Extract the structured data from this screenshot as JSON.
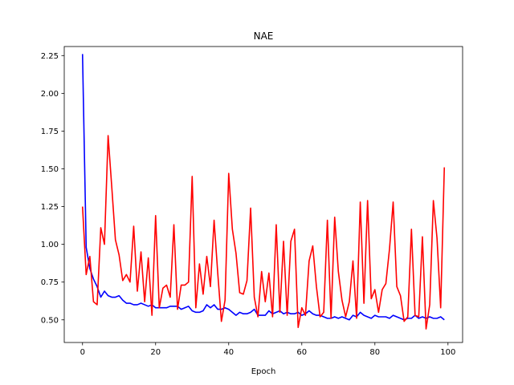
{
  "chart_data": {
    "type": "line",
    "title": "NAE",
    "xlabel": "Epoch",
    "ylabel": "",
    "xlim": [
      -5,
      104
    ],
    "ylim": [
      0.35,
      2.31
    ],
    "xticks": [
      0,
      20,
      40,
      60,
      80,
      100
    ],
    "yticks": [
      0.5,
      0.75,
      1.0,
      1.25,
      1.5,
      1.75,
      2.0,
      2.25
    ],
    "xtick_labels": [
      "0",
      "20",
      "40",
      "60",
      "80",
      "100"
    ],
    "ytick_labels": [
      "0.50",
      "0.75",
      "1.00",
      "1.25",
      "1.50",
      "1.75",
      "2.00",
      "2.25"
    ],
    "grid": false,
    "x": [
      0,
      1,
      2,
      3,
      4,
      5,
      6,
      7,
      8,
      9,
      10,
      11,
      12,
      13,
      14,
      15,
      16,
      17,
      18,
      19,
      20,
      21,
      22,
      23,
      24,
      25,
      26,
      27,
      28,
      29,
      30,
      31,
      32,
      33,
      34,
      35,
      36,
      37,
      38,
      39,
      40,
      41,
      42,
      43,
      44,
      45,
      46,
      47,
      48,
      49,
      50,
      51,
      52,
      53,
      54,
      55,
      56,
      57,
      58,
      59,
      60,
      61,
      62,
      63,
      64,
      65,
      66,
      67,
      68,
      69,
      70,
      71,
      72,
      73,
      74,
      75,
      76,
      77,
      78,
      79,
      80,
      81,
      82,
      83,
      84,
      85,
      86,
      87,
      88,
      89,
      90,
      91,
      92,
      93,
      94,
      95,
      96,
      97,
      98,
      99
    ],
    "series": [
      {
        "color": "#0000ff",
        "values": [
          2.26,
          0.98,
          0.84,
          0.77,
          0.72,
          0.65,
          0.69,
          0.66,
          0.65,
          0.65,
          0.66,
          0.63,
          0.61,
          0.61,
          0.6,
          0.6,
          0.61,
          0.6,
          0.59,
          0.6,
          0.58,
          0.58,
          0.58,
          0.58,
          0.59,
          0.59,
          0.59,
          0.57,
          0.58,
          0.59,
          0.56,
          0.55,
          0.55,
          0.56,
          0.6,
          0.58,
          0.6,
          0.57,
          0.57,
          0.58,
          0.57,
          0.55,
          0.53,
          0.55,
          0.54,
          0.54,
          0.55,
          0.57,
          0.53,
          0.53,
          0.53,
          0.56,
          0.54,
          0.55,
          0.56,
          0.54,
          0.55,
          0.54,
          0.54,
          0.55,
          0.53,
          0.54,
          0.56,
          0.54,
          0.53,
          0.53,
          0.52,
          0.51,
          0.51,
          0.52,
          0.51,
          0.52,
          0.51,
          0.5,
          0.53,
          0.52,
          0.55,
          0.53,
          0.52,
          0.51,
          0.53,
          0.52,
          0.52,
          0.52,
          0.51,
          0.53,
          0.52,
          0.51,
          0.5,
          0.51,
          0.51,
          0.53,
          0.51,
          0.52,
          0.51,
          0.52,
          0.51,
          0.51,
          0.52,
          0.5
        ]
      },
      {
        "color": "#ff0000",
        "values": [
          1.25,
          0.8,
          0.92,
          0.62,
          0.6,
          1.11,
          1.0,
          1.72,
          1.38,
          1.03,
          0.93,
          0.76,
          0.8,
          0.75,
          1.12,
          0.69,
          0.95,
          0.62,
          0.91,
          0.53,
          1.19,
          0.58,
          0.71,
          0.73,
          0.65,
          1.13,
          0.57,
          0.73,
          0.73,
          0.75,
          1.45,
          0.58,
          0.87,
          0.67,
          0.92,
          0.72,
          1.16,
          0.81,
          0.49,
          0.63,
          1.47,
          1.1,
          0.94,
          0.68,
          0.67,
          0.76,
          1.24,
          0.65,
          0.52,
          0.82,
          0.62,
          0.81,
          0.52,
          1.13,
          0.55,
          1.02,
          0.53,
          1.02,
          1.1,
          0.45,
          0.58,
          0.53,
          0.89,
          0.99,
          0.72,
          0.52,
          0.55,
          1.16,
          0.51,
          1.18,
          0.82,
          0.63,
          0.52,
          0.62,
          0.89,
          0.51,
          1.28,
          0.61,
          1.29,
          0.64,
          0.7,
          0.55,
          0.7,
          0.74,
          0.97,
          1.28,
          0.72,
          0.66,
          0.49,
          0.52,
          1.1,
          0.53,
          0.52,
          1.05,
          0.44,
          0.6,
          1.29,
          1.04,
          0.58,
          1.51
        ]
      }
    ]
  }
}
